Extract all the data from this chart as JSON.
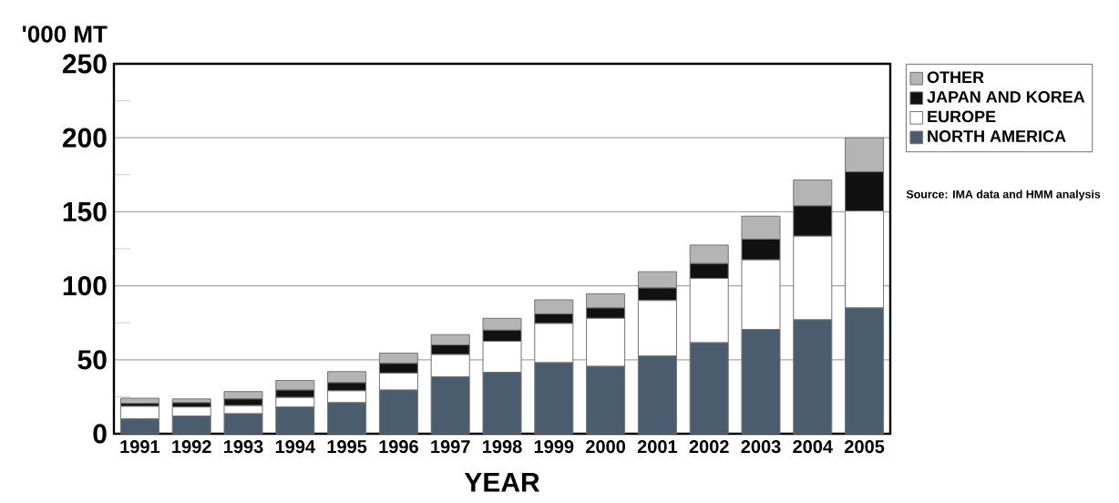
{
  "chart_data": {
    "type": "bar",
    "stacked": true,
    "ylabel": "'000 MT",
    "xlabel": "YEAR",
    "categories": [
      "1991",
      "1992",
      "1993",
      "1994",
      "1995",
      "1996",
      "1997",
      "1998",
      "1999",
      "2000",
      "2001",
      "2002",
      "2003",
      "2004",
      "2005"
    ],
    "series": [
      {
        "name": "NORTH AMERICA",
        "color": "#4a5d6e",
        "values": [
          10,
          12,
          13.5,
          18,
          21,
          29.5,
          38.5,
          41.5,
          48,
          45.5,
          52.5,
          61.5,
          70.5,
          77,
          85
        ]
      },
      {
        "name": "EUROPE",
        "color": "#ffffff",
        "values": [
          8.5,
          6,
          5.5,
          6.5,
          8,
          11.5,
          15,
          21,
          26.5,
          32.5,
          37.5,
          43.5,
          47,
          56.5,
          65.5
        ]
      },
      {
        "name": "JAPAN AND KOREA",
        "color": "#111111",
        "values": [
          2,
          3,
          4.5,
          5,
          5.5,
          6.5,
          6.5,
          7.5,
          6.5,
          7,
          8.5,
          10,
          14,
          20.5,
          26.5
        ]
      },
      {
        "name": "OTHER",
        "color": "#b4b4b4",
        "values": [
          3.5,
          2.5,
          5,
          6.5,
          7.5,
          7,
          7,
          8,
          9.5,
          9.5,
          11,
          12.5,
          15.5,
          17.5,
          23
        ]
      }
    ],
    "ylim": [
      0,
      250
    ],
    "yticks": [
      0,
      50,
      100,
      150,
      200,
      250
    ],
    "grid": "y",
    "legend": "right",
    "annotations": [
      "Source: IMA data and HMM analysis"
    ]
  }
}
